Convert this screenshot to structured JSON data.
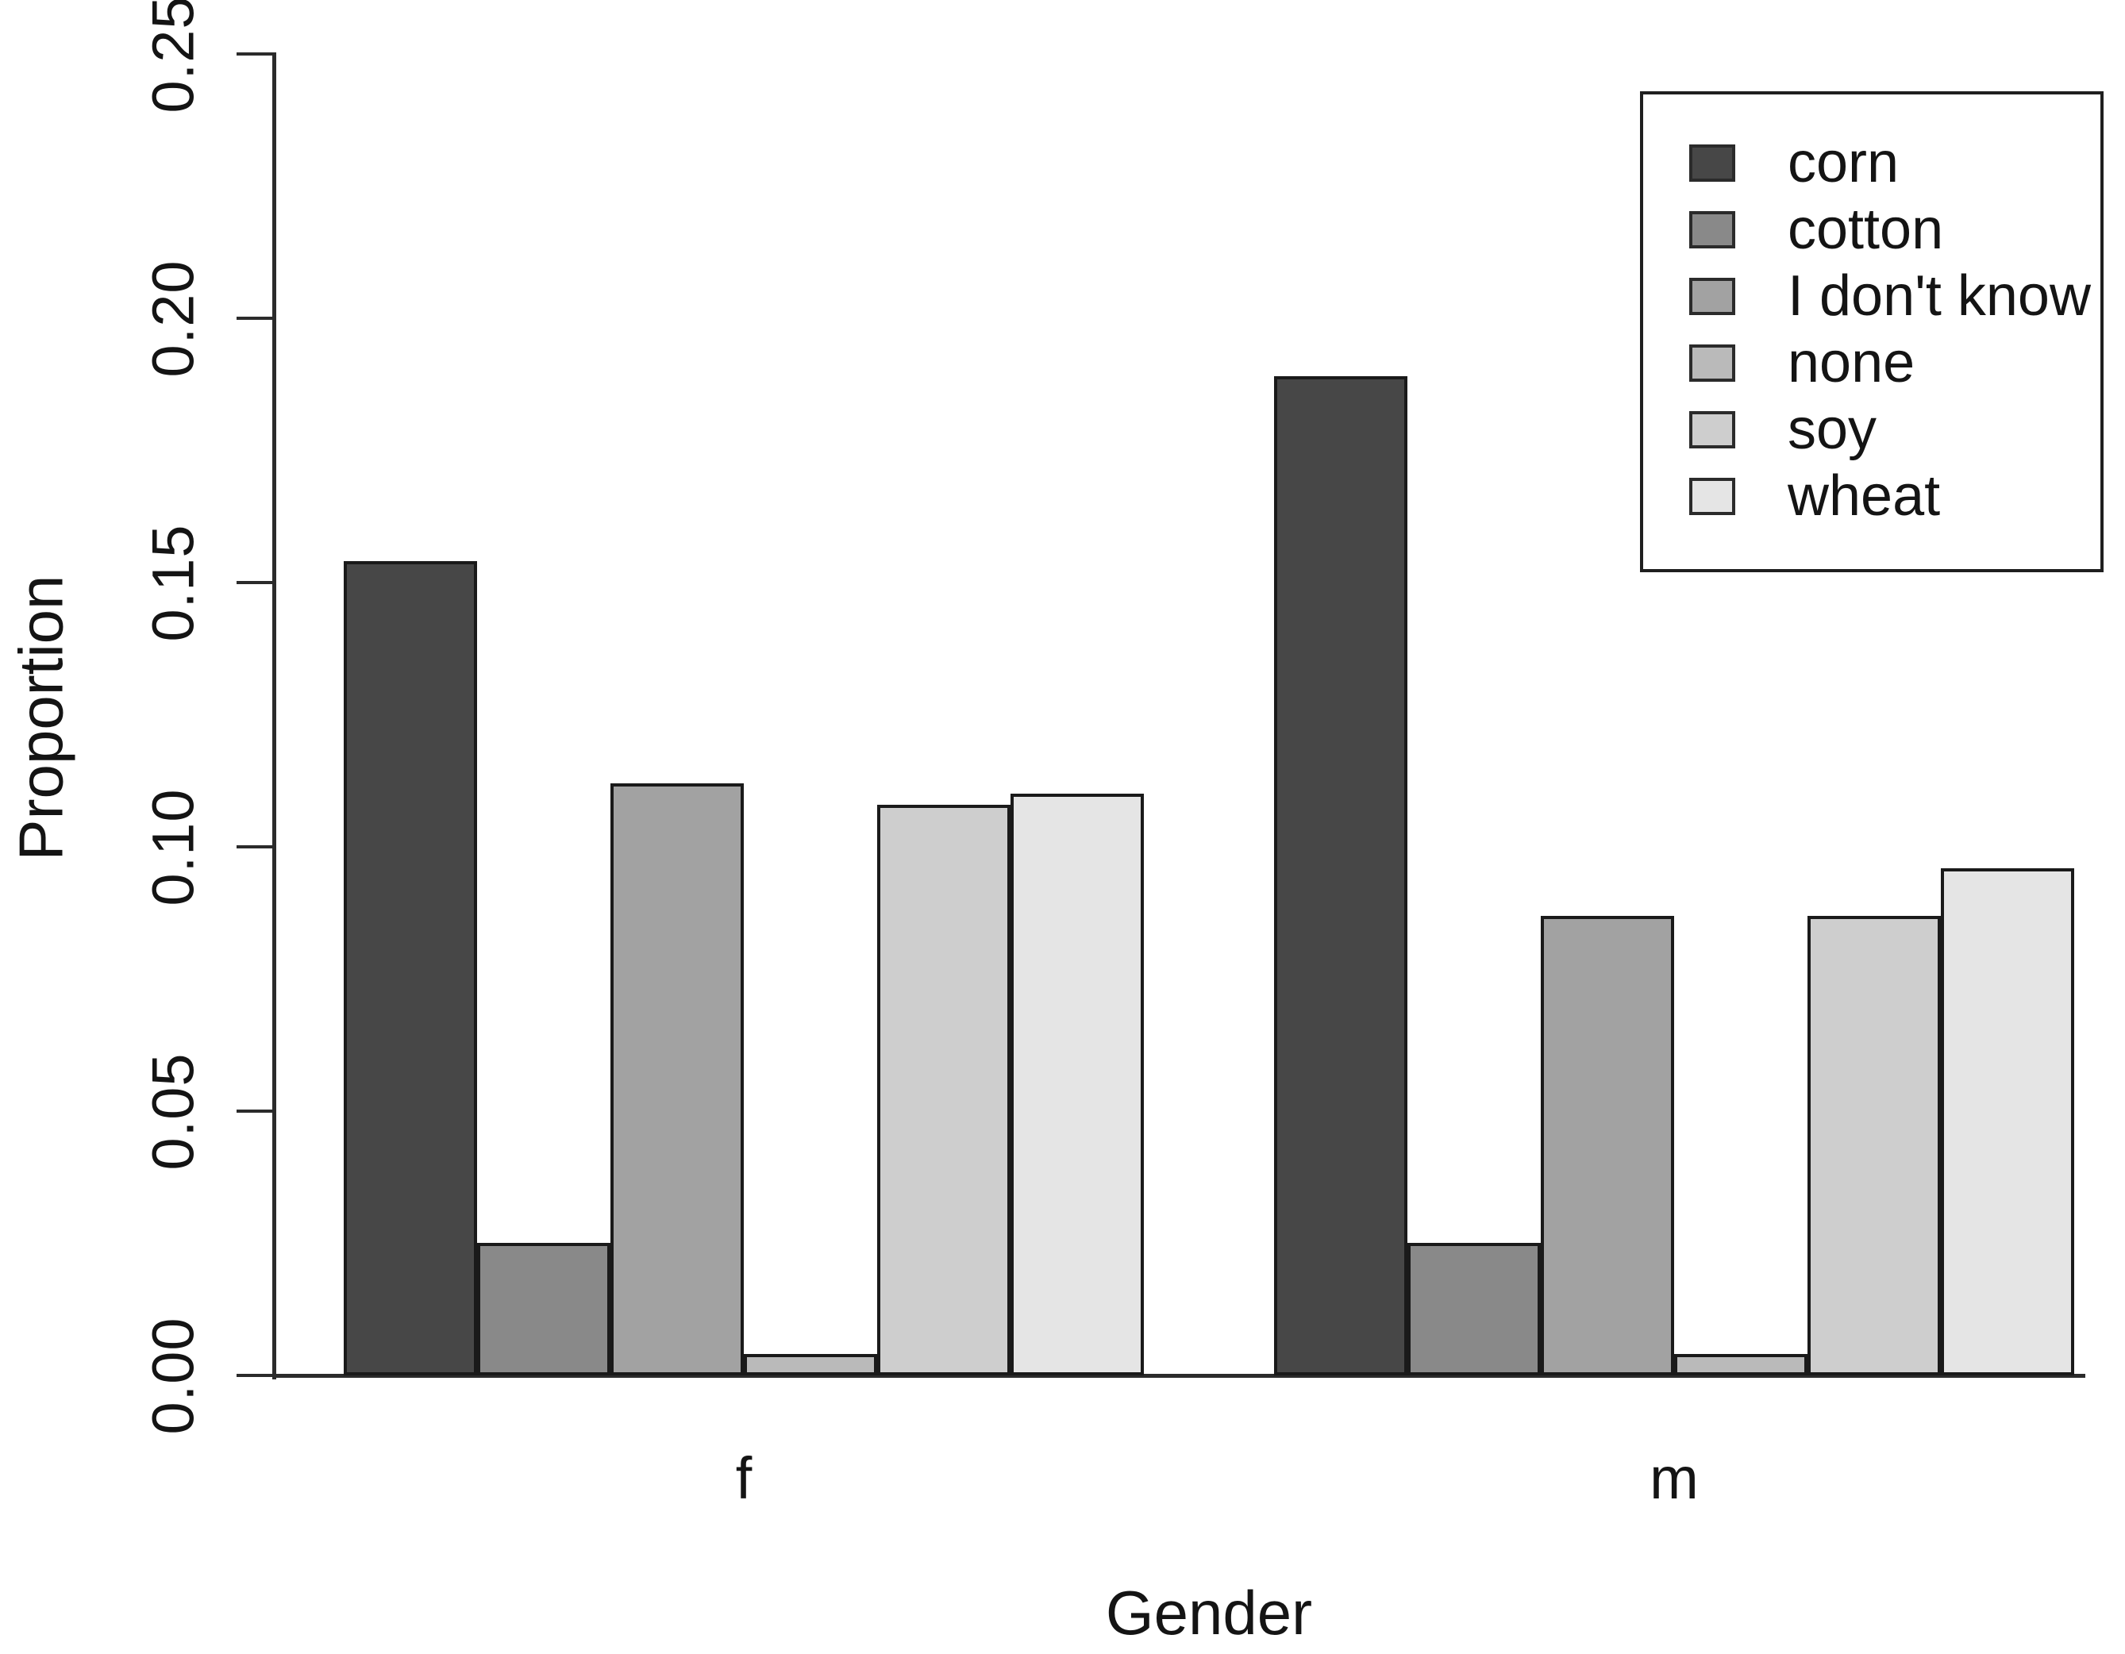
{
  "chart_data": {
    "type": "bar",
    "title": "",
    "xlabel": "Gender",
    "ylabel": "Proportion",
    "categories": [
      "f",
      "m"
    ],
    "series": [
      {
        "name": "corn",
        "color": "#474747",
        "values": [
          0.154,
          0.189
        ]
      },
      {
        "name": "cotton",
        "color": "#898989",
        "values": [
          0.025,
          0.025
        ]
      },
      {
        "name": "I don't know",
        "color": "#a2a2a2",
        "values": [
          0.112,
          0.087
        ]
      },
      {
        "name": "none",
        "color": "#bababa",
        "values": [
          0.004,
          0.004
        ]
      },
      {
        "name": "soy",
        "color": "#cecece",
        "values": [
          0.108,
          0.087
        ]
      },
      {
        "name": "wheat",
        "color": "#e5e5e5",
        "values": [
          0.11,
          0.096
        ]
      }
    ],
    "ylim": [
      0,
      0.25
    ],
    "ytick_labels": [
      "0.00",
      "0.05",
      "0.10",
      "0.15",
      "0.20",
      "0.25"
    ],
    "grid": false,
    "legend_position": "top-right",
    "legend_entries": [
      "corn",
      "cotton",
      "I don't know",
      "none",
      "soy",
      "wheat"
    ],
    "bar_border_color": "#1a1a1a",
    "axis_color": "#2b2b2b",
    "text_color": "#141414",
    "background_color": "#ffffff"
  }
}
